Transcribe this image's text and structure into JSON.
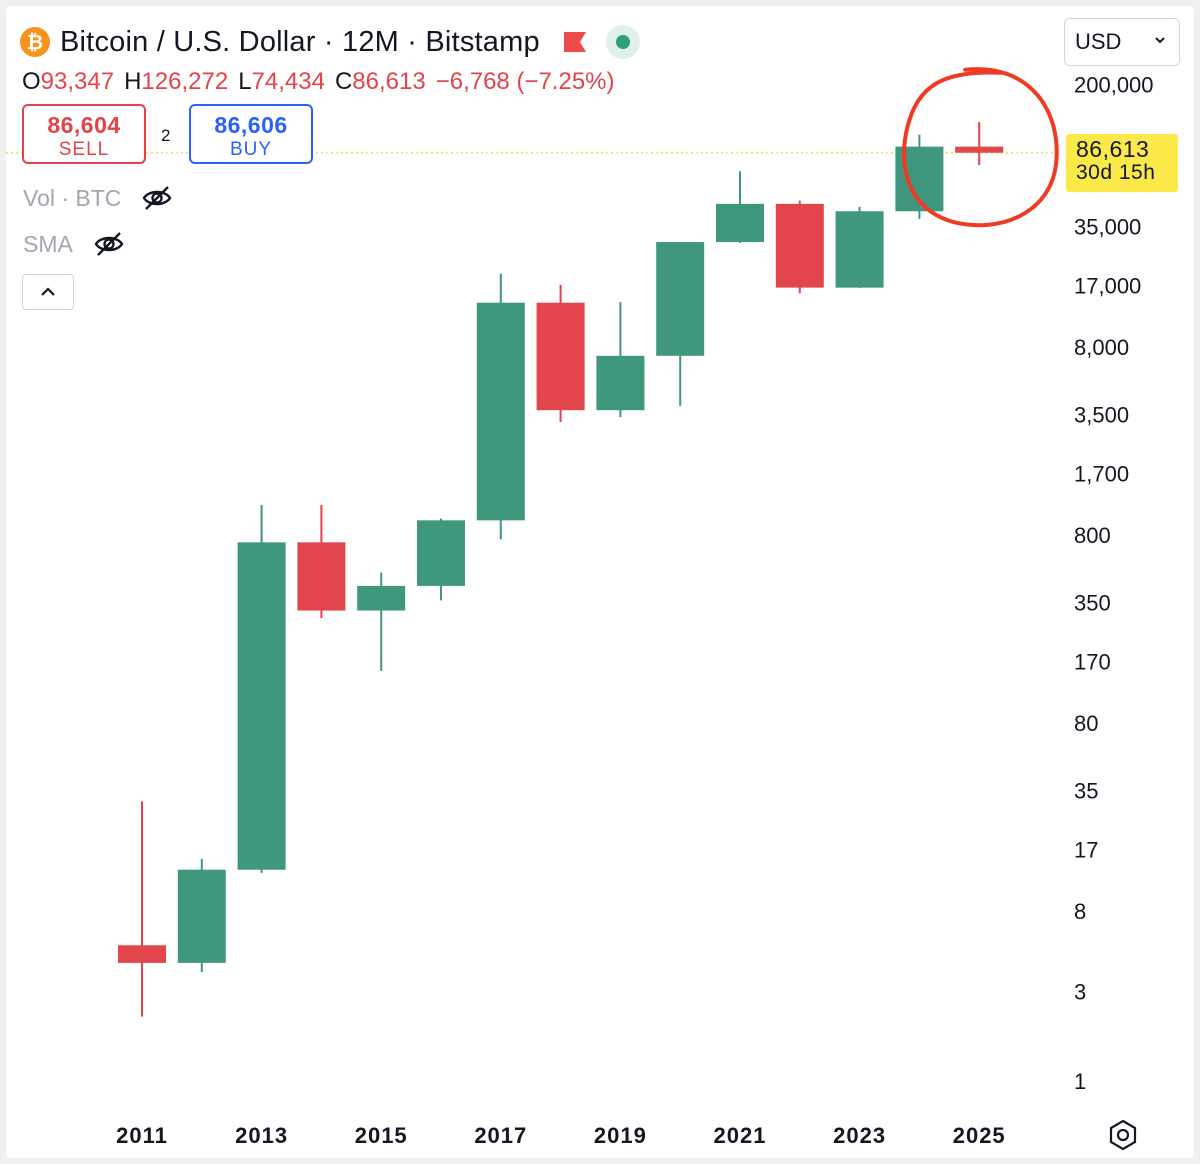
{
  "header": {
    "icon_glyph": "₿",
    "title": "Bitcoin / U.S. Dollar · 12M · Bitstamp",
    "flag_icon": "flag-icon",
    "market_status_icon": "market-open-dot-icon"
  },
  "ohlc": {
    "o_label": "O",
    "o_value": "93,347",
    "h_label": "H",
    "h_value": "126,272",
    "l_label": "L",
    "l_value": "74,434",
    "c_label": "C",
    "c_value": "86,613",
    "change": "−6,768 (−7.25%)"
  },
  "trade": {
    "sell_price": "86,604",
    "sell_label": "SELL",
    "spread": "2",
    "buy_price": "86,606",
    "buy_label": "BUY"
  },
  "indicators": [
    {
      "label": "Vol · BTC",
      "icon": "eye-off-icon"
    },
    {
      "label": "SMA",
      "icon": "eye-off-icon"
    }
  ],
  "currency": {
    "selected": "USD"
  },
  "last_price": {
    "value": "86,613",
    "countdown": "30d 15h"
  },
  "colors": {
    "up": "#3f977e",
    "down": "#e2454b",
    "annotation": "#ef3b24",
    "last_price_line": "#f5e13a"
  },
  "chart_data": {
    "type": "candlestick",
    "scale": "log",
    "xlabel": "",
    "ylabel": "",
    "x_ticks": [
      "2011",
      "2013",
      "2015",
      "2017",
      "2019",
      "2021",
      "2023",
      "2025"
    ],
    "y_ticks": [
      "200,000",
      "35,000",
      "17,000",
      "8,000",
      "3,500",
      "1,700",
      "800",
      "350",
      "170",
      "80",
      "35",
      "17",
      "8",
      "3",
      "1"
    ],
    "y_tick_values": [
      200000,
      35000,
      17000,
      8000,
      3500,
      1700,
      800,
      350,
      170,
      80,
      35,
      17,
      8,
      3,
      1
    ],
    "ylim": [
      1,
      200000
    ],
    "candles": [
      {
        "year": 2011,
        "open": 5.27,
        "high": 30.7,
        "low": 2.2,
        "close": 4.25
      },
      {
        "year": 2012,
        "open": 4.25,
        "high": 15.2,
        "low": 3.8,
        "close": 13.3
      },
      {
        "year": 2013,
        "open": 13.3,
        "high": 1160,
        "low": 12.8,
        "close": 733
      },
      {
        "year": 2014,
        "open": 733,
        "high": 1160,
        "low": 290,
        "close": 318
      },
      {
        "year": 2015,
        "open": 318,
        "high": 505,
        "low": 152,
        "close": 430
      },
      {
        "year": 2016,
        "open": 430,
        "high": 980,
        "low": 360,
        "close": 960
      },
      {
        "year": 2017,
        "open": 960,
        "high": 19700,
        "low": 760,
        "close": 13800
      },
      {
        "year": 2018,
        "open": 13800,
        "high": 17200,
        "low": 3200,
        "close": 3700
      },
      {
        "year": 2019,
        "open": 3700,
        "high": 13900,
        "low": 3400,
        "close": 7200
      },
      {
        "year": 2020,
        "open": 7200,
        "high": 29000,
        "low": 3900,
        "close": 29000
      },
      {
        "year": 2021,
        "open": 29000,
        "high": 69000,
        "low": 28700,
        "close": 46300
      },
      {
        "year": 2022,
        "open": 46300,
        "high": 48200,
        "low": 15500,
        "close": 16600
      },
      {
        "year": 2023,
        "open": 16600,
        "high": 44700,
        "low": 16500,
        "close": 42300
      },
      {
        "year": 2024,
        "open": 42300,
        "high": 108000,
        "low": 38500,
        "close": 93347
      },
      {
        "year": 2025,
        "open": 93347,
        "high": 126272,
        "low": 74434,
        "close": 86613
      }
    ],
    "last_price": 86613,
    "annotation": "red hand-drawn circle around the 2025 candle"
  }
}
